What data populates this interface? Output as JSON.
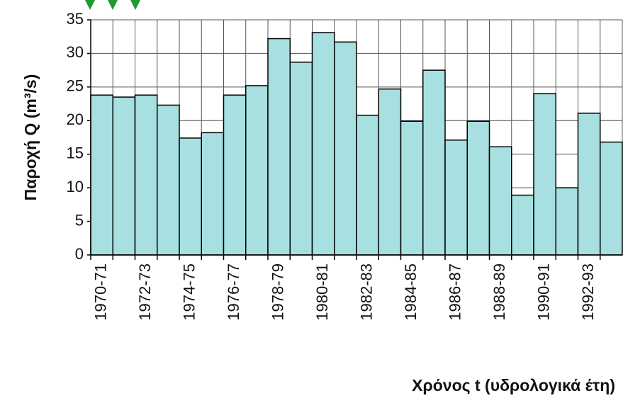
{
  "chart_data": {
    "type": "bar",
    "ylabel": "Παροχή Q (m³/s)",
    "xlabel": "Χρόνος t (υδρολογικά έτη)",
    "categories": [
      "1970-71",
      null,
      "1972-73",
      null,
      "1974-75",
      null,
      "1976-77",
      null,
      "1978-79",
      null,
      "1980-81",
      null,
      "1982-83",
      null,
      "1984-85",
      null,
      "1986-87",
      null,
      "1988-89",
      null,
      "1990-91",
      null,
      "1992-93",
      null
    ],
    "values": [
      23.8,
      23.5,
      23.8,
      22.3,
      17.4,
      18.2,
      23.8,
      25.2,
      32.2,
      28.7,
      33.1,
      31.7,
      20.8,
      24.7,
      19.9,
      27.5,
      17.1,
      19.9,
      16.1,
      8.9,
      24.0,
      10.0,
      21.1,
      16.8
    ],
    "color": "#a8dfe0",
    "ylim": [
      0,
      35
    ],
    "yticks": [
      0,
      5,
      10,
      15,
      20,
      25,
      30,
      35
    ],
    "grid": true
  }
}
